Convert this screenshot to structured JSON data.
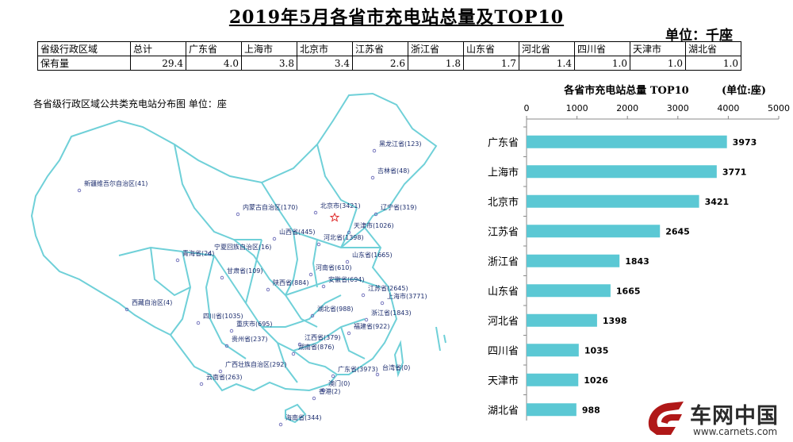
{
  "title": "2019年5月各省市充电站总量及TOP10",
  "unit_label": "单位：千座",
  "summary_table": {
    "headers": [
      "省级行政区域",
      "总计",
      "广东省",
      "上海市",
      "北京市",
      "江苏省",
      "浙江省",
      "山东省",
      "河北省",
      "四川省",
      "天津市",
      "湖北省"
    ],
    "row_label": "保有量",
    "values": [
      "29.4",
      "4.0",
      "3.8",
      "3.4",
      "2.6",
      "1.8",
      "1.7",
      "1.4",
      "1.0",
      "1.0",
      "1.0"
    ]
  },
  "map": {
    "title": "各省级行政区域公共类充电站分布图  单位：座",
    "labels": [
      {
        "text": "黑龙江省(123)"
      },
      {
        "text": "吉林省(48)"
      },
      {
        "text": "辽宁省(319)"
      },
      {
        "text": "新疆维吾尔自治区(41)"
      },
      {
        "text": "内蒙古自治区(170)"
      },
      {
        "text": "北京市(3421)"
      },
      {
        "text": "天津市(1026)"
      },
      {
        "text": "山西省(445)"
      },
      {
        "text": "河北省(1398)"
      },
      {
        "text": "宁夏回族自治区(16)"
      },
      {
        "text": "青海省(24)"
      },
      {
        "text": "山东省(1665)"
      },
      {
        "text": "甘肃省(109)"
      },
      {
        "text": "河南省(610)"
      },
      {
        "text": "陕西省(884)"
      },
      {
        "text": "安徽省(694)"
      },
      {
        "text": "江苏省(2645)"
      },
      {
        "text": "上海市(3771)"
      },
      {
        "text": "西藏自治区(4)"
      },
      {
        "text": "湖北省(988)"
      },
      {
        "text": "浙江省(1843)"
      },
      {
        "text": "四川省(1035)"
      },
      {
        "text": "重庆市(695)"
      },
      {
        "text": "福建省(922)"
      },
      {
        "text": "贵州省(237)"
      },
      {
        "text": "江西省(379)"
      },
      {
        "text": "湖南省(876)"
      },
      {
        "text": "广西壮族自治区(292)"
      },
      {
        "text": "广东省(3973)"
      },
      {
        "text": "台湾省(0)"
      },
      {
        "text": "云南省(263)"
      },
      {
        "text": "澳门(0)"
      },
      {
        "text": "香港(2)"
      },
      {
        "text": "海南省(344)"
      }
    ]
  },
  "chart_data": {
    "type": "bar",
    "orientation": "horizontal",
    "title": "各省市充电站总量 TOP10",
    "unit": "(单位:座)",
    "categories": [
      "广东省",
      "上海市",
      "北京市",
      "江苏省",
      "浙江省",
      "山东省",
      "河北省",
      "四川省",
      "天津市",
      "湖北省"
    ],
    "values": [
      3973,
      3771,
      3421,
      2645,
      1843,
      1665,
      1398,
      1035,
      1026,
      988
    ],
    "xlim": [
      0,
      5000
    ],
    "xticks": [
      0,
      1000,
      2000,
      3000,
      4000,
      5000
    ],
    "axis_position": "top",
    "grid": false,
    "bar_color": "#5BC8D4"
  },
  "logo": {
    "name": "车网中国",
    "url": "www.carnets.com"
  }
}
